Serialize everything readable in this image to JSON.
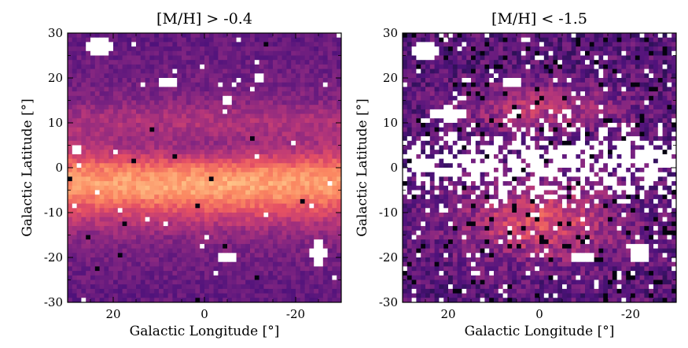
{
  "chart_data": [
    {
      "type": "heatmap",
      "title": "[M/H] > -0.4",
      "xlabel": "Galactic Longitude [°]",
      "ylabel": "Galactic Latitude [°]",
      "xlim": [
        30,
        -30
      ],
      "ylim": [
        -30,
        30
      ],
      "xticks": [
        {
          "value": 20,
          "label": "20"
        },
        {
          "value": 0,
          "label": "0"
        },
        {
          "value": -20,
          "label": "-20"
        }
      ],
      "yticks": [
        {
          "value": -30,
          "label": "-30"
        },
        {
          "value": -20,
          "label": "-20"
        },
        {
          "value": -10,
          "label": "-10"
        },
        {
          "value": 0,
          "label": "0"
        },
        {
          "value": 10,
          "label": "10"
        },
        {
          "value": 20,
          "label": "20"
        },
        {
          "value": 30,
          "label": "30"
        }
      ],
      "colormap": "magma",
      "grid": false
    },
    {
      "type": "heatmap",
      "title": "[M/H] < -1.5",
      "xlabel": "Galactic Longitude [°]",
      "ylabel": "Galactic Latitude [°]",
      "xlim": [
        30,
        -30
      ],
      "ylim": [
        -30,
        30
      ],
      "xticks": [
        {
          "value": 20,
          "label": "20"
        },
        {
          "value": 0,
          "label": "0"
        },
        {
          "value": -20,
          "label": "-20"
        }
      ],
      "yticks": [
        {
          "value": -30,
          "label": "-30"
        },
        {
          "value": -20,
          "label": "-20"
        },
        {
          "value": -10,
          "label": "-10"
        },
        {
          "value": 0,
          "label": "0"
        },
        {
          "value": 10,
          "label": "10"
        },
        {
          "value": 20,
          "label": "20"
        },
        {
          "value": 30,
          "label": "30"
        }
      ],
      "colormap": "magma",
      "grid": false
    }
  ]
}
